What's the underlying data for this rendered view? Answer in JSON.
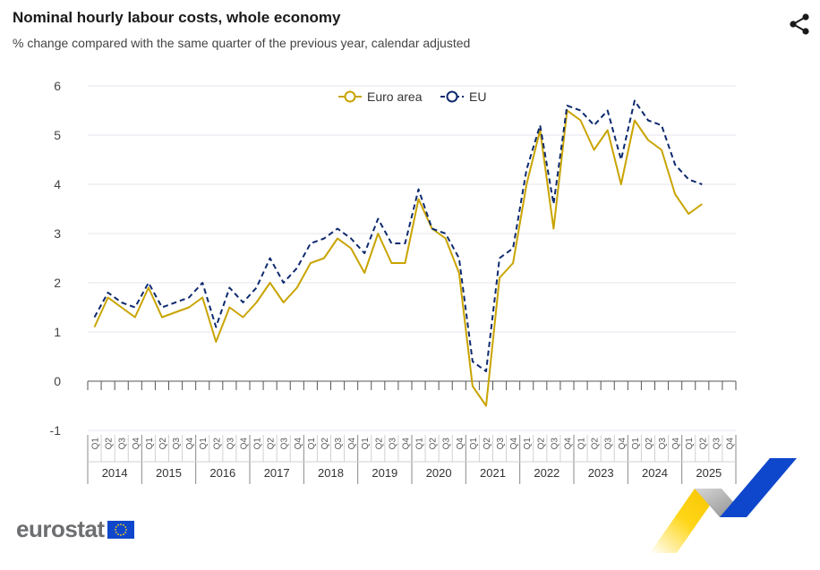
{
  "header": {
    "title": "Nominal hourly labour costs, whole economy",
    "subtitle": "% change compared with the same quarter of the previous year, calendar adjusted"
  },
  "branding": {
    "logo_text": "eurostat"
  },
  "chart_data": {
    "type": "line",
    "title": "Nominal hourly labour costs, whole economy",
    "subtitle": "% change compared with the same quarter of the previous year, calendar adjusted",
    "xlabel": "",
    "ylabel": "",
    "ylim": [
      -1,
      6
    ],
    "yticks": [
      -1,
      0,
      1,
      2,
      3,
      4,
      5,
      6
    ],
    "grid": true,
    "legend_position": "top-center",
    "quarters": [
      "Q1",
      "Q2",
      "Q3",
      "Q4"
    ],
    "years": [
      "2014",
      "2015",
      "2016",
      "2017",
      "2018",
      "2019",
      "2020",
      "2021",
      "2022",
      "2023",
      "2024",
      "2025"
    ],
    "series": [
      {
        "name": "Euro area",
        "color": "#c9a400",
        "dash": "solid",
        "values": [
          1.1,
          1.7,
          1.5,
          1.3,
          1.9,
          1.3,
          1.4,
          1.5,
          1.7,
          0.8,
          1.5,
          1.3,
          1.6,
          2.0,
          1.6,
          1.9,
          2.4,
          2.5,
          2.9,
          2.7,
          2.2,
          3.0,
          2.4,
          2.4,
          3.7,
          3.1,
          2.9,
          2.2,
          -0.1,
          -0.5,
          2.1,
          2.4,
          4.0,
          5.1,
          3.1,
          5.5,
          5.3,
          4.7,
          5.1,
          4.0,
          5.3,
          4.9,
          4.7,
          3.8,
          3.4,
          3.6
        ]
      },
      {
        "name": "EU",
        "color": "#0e2a6e",
        "dash": "dashed",
        "values": [
          1.3,
          1.8,
          1.6,
          1.5,
          2.0,
          1.5,
          1.6,
          1.7,
          2.0,
          1.1,
          1.9,
          1.6,
          1.9,
          2.5,
          2.0,
          2.3,
          2.8,
          2.9,
          3.1,
          2.9,
          2.6,
          3.3,
          2.8,
          2.8,
          3.9,
          3.1,
          3.0,
          2.5,
          0.4,
          0.2,
          2.5,
          2.7,
          4.3,
          5.2,
          3.6,
          5.6,
          5.5,
          5.2,
          5.5,
          4.5,
          5.7,
          5.3,
          5.2,
          4.4,
          4.1,
          4.0
        ]
      }
    ]
  }
}
